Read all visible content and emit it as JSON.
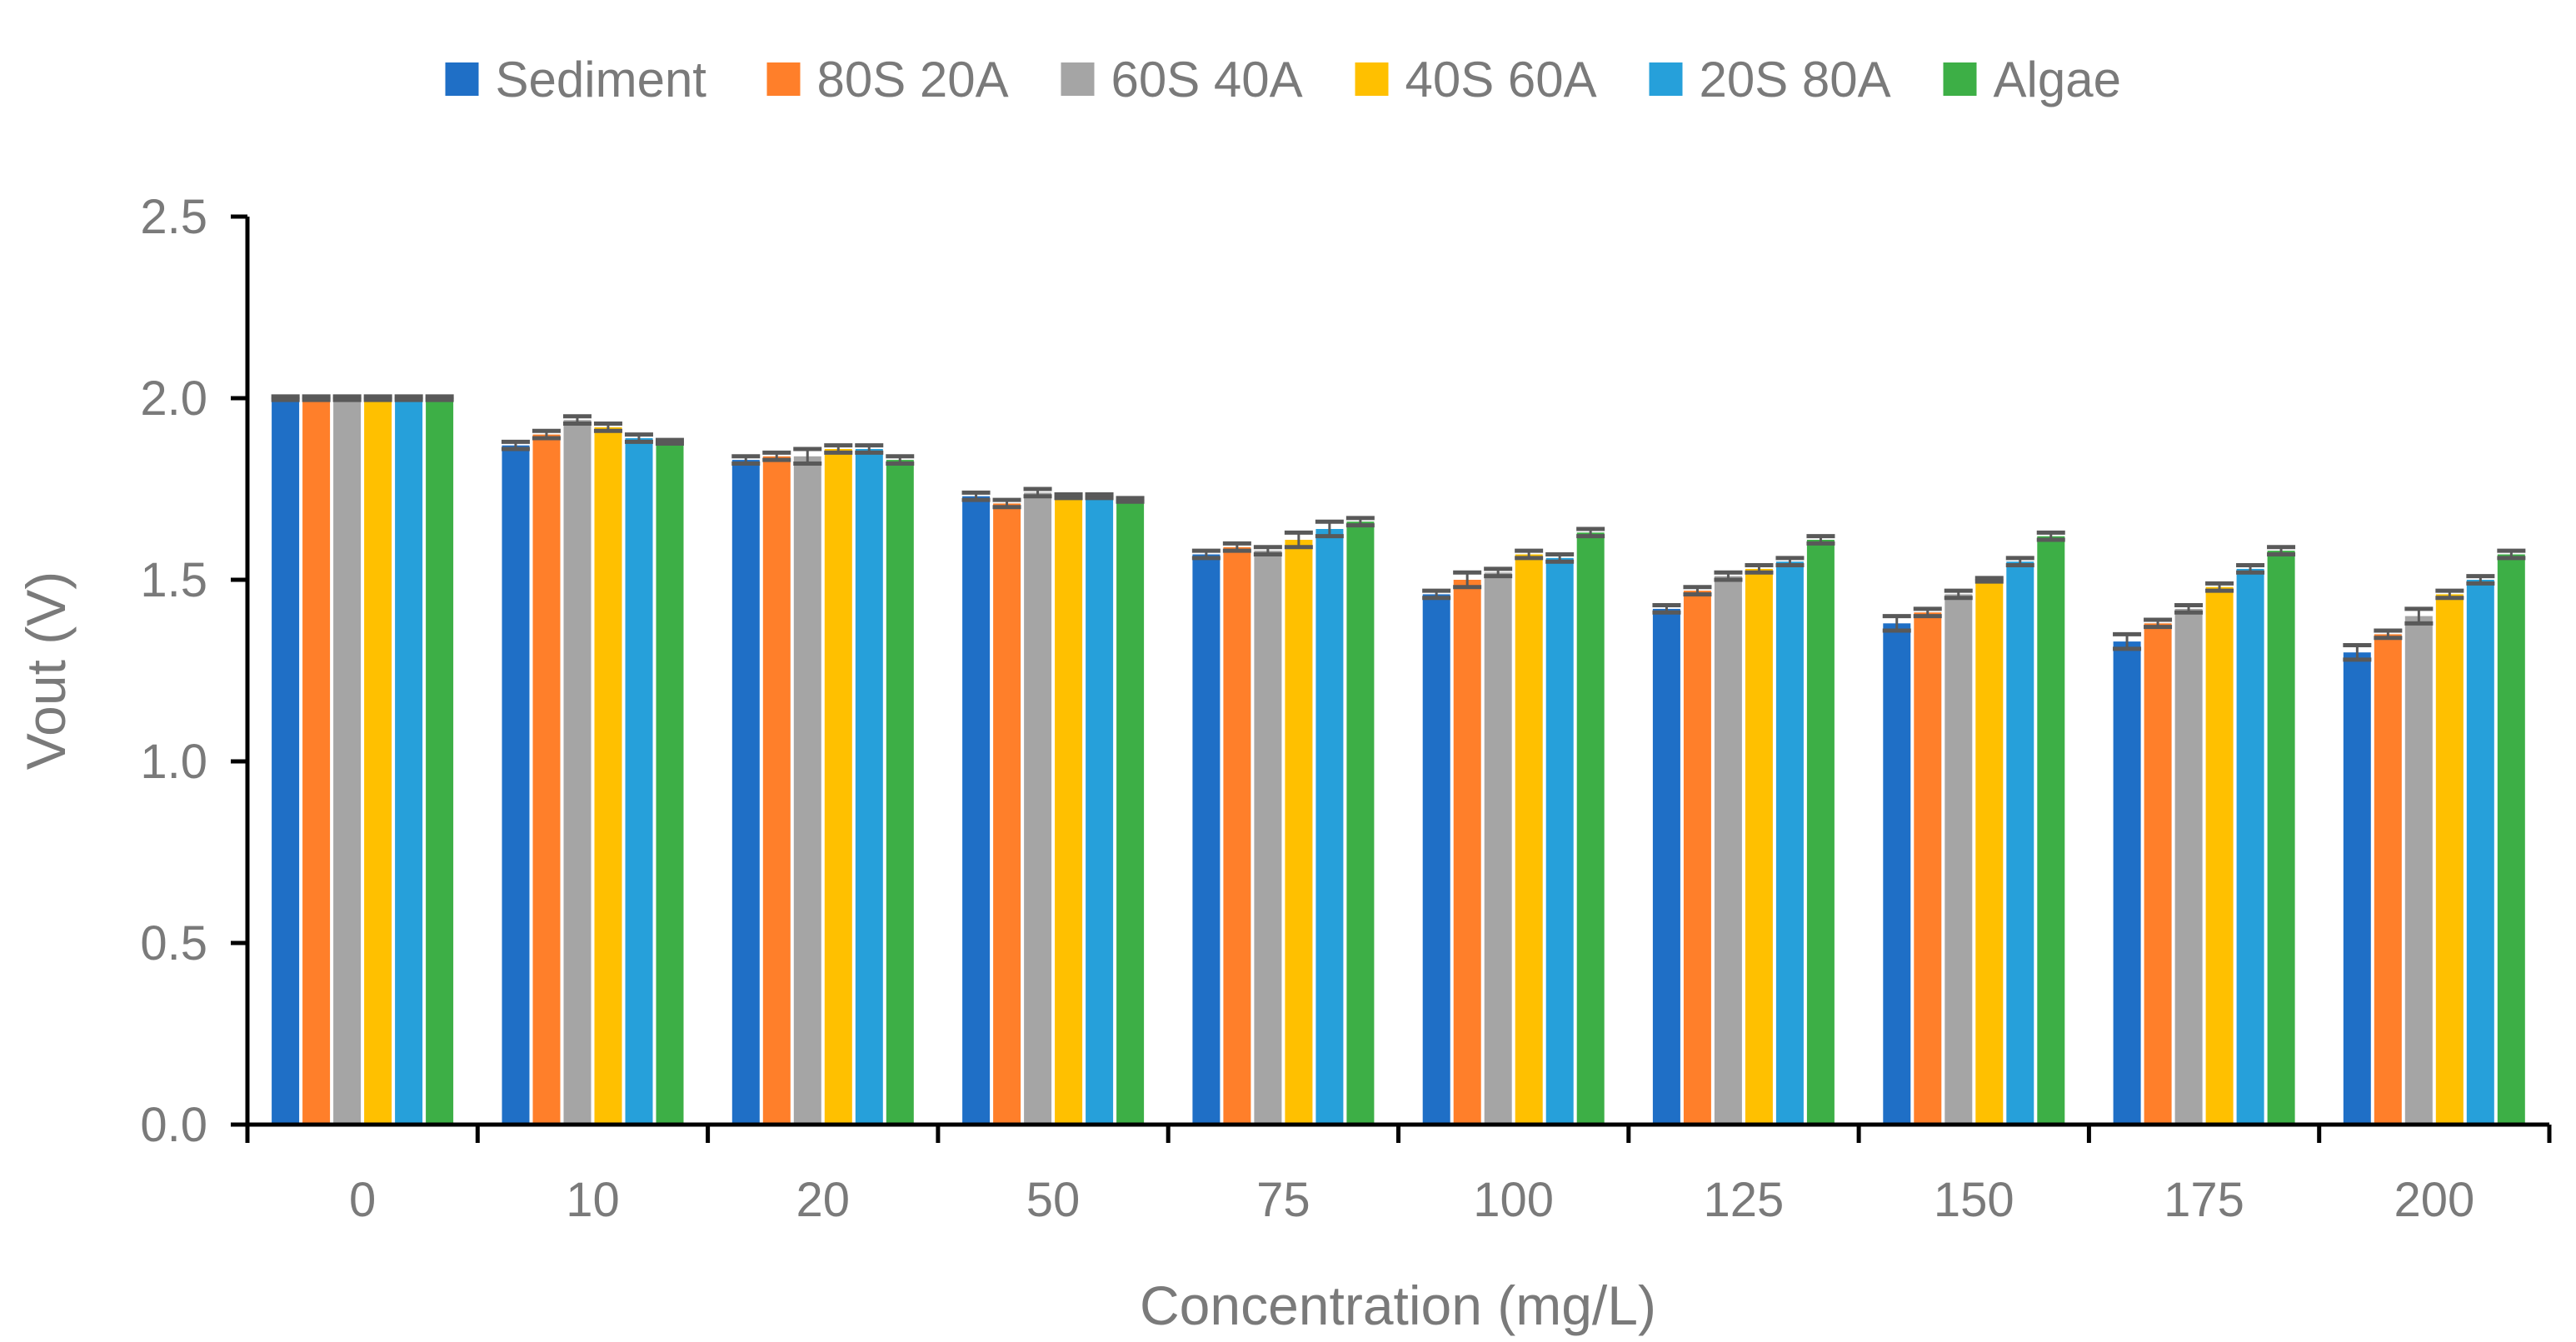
{
  "chart_data": {
    "type": "bar",
    "title": "",
    "xlabel": "Concentration (mg/L)",
    "ylabel": "Vout (V)",
    "ylim": [
      0,
      2.5
    ],
    "ytick_labels": [
      "0.0",
      "0.5",
      "1.0",
      "1.5",
      "2.0",
      "2.5"
    ],
    "categories": [
      "0",
      "10",
      "20",
      "50",
      "75",
      "100",
      "125",
      "150",
      "175",
      "200"
    ],
    "legend_position": "top",
    "series": [
      {
        "name": "Sediment",
        "color": "#1f6fc6",
        "values": [
          2.0,
          1.87,
          1.83,
          1.73,
          1.57,
          1.46,
          1.42,
          1.38,
          1.33,
          1.3
        ],
        "errors": [
          0.005,
          0.01,
          0.01,
          0.01,
          0.01,
          0.01,
          0.01,
          0.02,
          0.02,
          0.02
        ]
      },
      {
        "name": "80S 20A",
        "color": "#ff7f2a",
        "values": [
          2.0,
          1.9,
          1.84,
          1.71,
          1.59,
          1.5,
          1.47,
          1.41,
          1.38,
          1.35
        ],
        "errors": [
          0.005,
          0.01,
          0.01,
          0.01,
          0.01,
          0.02,
          0.01,
          0.01,
          0.01,
          0.01
        ]
      },
      {
        "name": "60S 40A",
        "color": "#a5a5a5",
        "values": [
          2.0,
          1.94,
          1.84,
          1.74,
          1.58,
          1.52,
          1.51,
          1.46,
          1.42,
          1.4
        ],
        "errors": [
          0.005,
          0.01,
          0.02,
          0.01,
          0.01,
          0.01,
          0.01,
          0.01,
          0.01,
          0.02
        ]
      },
      {
        "name": "40S 60A",
        "color": "#ffc000",
        "values": [
          2.0,
          1.92,
          1.86,
          1.73,
          1.61,
          1.57,
          1.53,
          1.5,
          1.48,
          1.46
        ],
        "errors": [
          0.005,
          0.01,
          0.01,
          0.005,
          0.02,
          0.01,
          0.01,
          0.005,
          0.01,
          0.01
        ]
      },
      {
        "name": "20S 80A",
        "color": "#26a0da",
        "values": [
          2.0,
          1.89,
          1.86,
          1.73,
          1.64,
          1.56,
          1.55,
          1.55,
          1.53,
          1.5
        ],
        "errors": [
          0.005,
          0.01,
          0.01,
          0.005,
          0.02,
          0.01,
          0.01,
          0.01,
          0.01,
          0.01
        ]
      },
      {
        "name": "Algae",
        "color": "#3daf46",
        "values": [
          2.0,
          1.88,
          1.83,
          1.72,
          1.66,
          1.63,
          1.61,
          1.62,
          1.58,
          1.57
        ],
        "errors": [
          0.005,
          0.005,
          0.01,
          0.005,
          0.01,
          0.01,
          0.01,
          0.01,
          0.01,
          0.01
        ]
      }
    ]
  }
}
